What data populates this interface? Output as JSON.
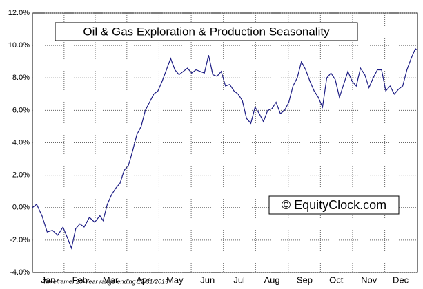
{
  "chart_data": {
    "type": "line",
    "title": "Oil & Gas Exploration & Production Seasonality",
    "watermark": "© EquityClock.com",
    "footnote": "Timeframe: 20-Year range ending 12/31/2015",
    "xlim": [
      1,
      366
    ],
    "xticks": [
      {
        "value": 16,
        "label": "Jan"
      },
      {
        "value": 46,
        "label": "Feb"
      },
      {
        "value": 75,
        "label": "Mar"
      },
      {
        "value": 106,
        "label": "Apr"
      },
      {
        "value": 136,
        "label": "May"
      },
      {
        "value": 167,
        "label": "Jun"
      },
      {
        "value": 197,
        "label": "Jul"
      },
      {
        "value": 228,
        "label": "Aug"
      },
      {
        "value": 259,
        "label": "Sep"
      },
      {
        "value": 289,
        "label": "Oct"
      },
      {
        "value": 320,
        "label": "Nov"
      },
      {
        "value": 350,
        "label": "Dec"
      }
    ],
    "ylim": [
      -4,
      12
    ],
    "yticks": [
      {
        "value": -4,
        "label": "-4.0%"
      },
      {
        "value": -2,
        "label": "-2.0%"
      },
      {
        "value": 0,
        "label": "0.0%"
      },
      {
        "value": 2,
        "label": "2.0%"
      },
      {
        "value": 4,
        "label": "4.0%"
      },
      {
        "value": 6,
        "label": "6.0%"
      },
      {
        "value": 8,
        "label": "8.0%"
      },
      {
        "value": 10,
        "label": "10.0%"
      },
      {
        "value": 12,
        "label": "12.0%"
      }
    ],
    "grid": true,
    "series": [
      {
        "color": "#1c1c84",
        "x": [
          1,
          5,
          10,
          15,
          20,
          25,
          30,
          35,
          38,
          42,
          46,
          50,
          55,
          60,
          65,
          68,
          72,
          76,
          80,
          84,
          88,
          92,
          96,
          100,
          104,
          108,
          112,
          116,
          120,
          124,
          128,
          132,
          136,
          140,
          144,
          148,
          152,
          156,
          160,
          164,
          168,
          172,
          176,
          180,
          184,
          188,
          192,
          196,
          200,
          204,
          208,
          212,
          216,
          220,
          224,
          228,
          232,
          236,
          240,
          244,
          248,
          252,
          256,
          260,
          264,
          268,
          272,
          276,
          280,
          284,
          288,
          292,
          296,
          300,
          304,
          308,
          312,
          316,
          320,
          324,
          328,
          332,
          336,
          340,
          344,
          348,
          352,
          356,
          360,
          364,
          366
        ],
        "values": [
          0,
          0.2,
          -0.5,
          -1.5,
          -1.4,
          -1.7,
          -1.2,
          -2.0,
          -2.5,
          -1.3,
          -1.0,
          -1.2,
          -0.6,
          -0.9,
          -0.5,
          -0.8,
          0.2,
          0.8,
          1.2,
          1.5,
          2.3,
          2.6,
          3.5,
          4.5,
          5.0,
          6.0,
          6.5,
          7.0,
          7.2,
          7.8,
          8.5,
          9.2,
          8.5,
          8.2,
          8.4,
          8.6,
          8.3,
          8.5,
          8.4,
          8.3,
          9.4,
          8.2,
          8.1,
          8.4,
          7.5,
          7.6,
          7.2,
          7.0,
          6.6,
          5.5,
          5.2,
          6.2,
          5.8,
          5.3,
          6.0,
          6.1,
          6.5,
          5.8,
          6.0,
          6.5,
          7.5,
          8.0,
          9.0,
          8.5,
          7.8,
          7.2,
          6.8,
          6.2,
          8.0,
          8.3,
          7.9,
          6.8,
          7.6,
          8.4,
          7.8,
          7.5,
          8.6,
          8.2,
          7.4,
          8.0,
          8.5,
          8.5,
          7.2,
          7.5,
          7.0,
          7.3,
          7.5,
          8.5,
          9.2,
          9.8,
          9.7
        ]
      }
    ]
  }
}
